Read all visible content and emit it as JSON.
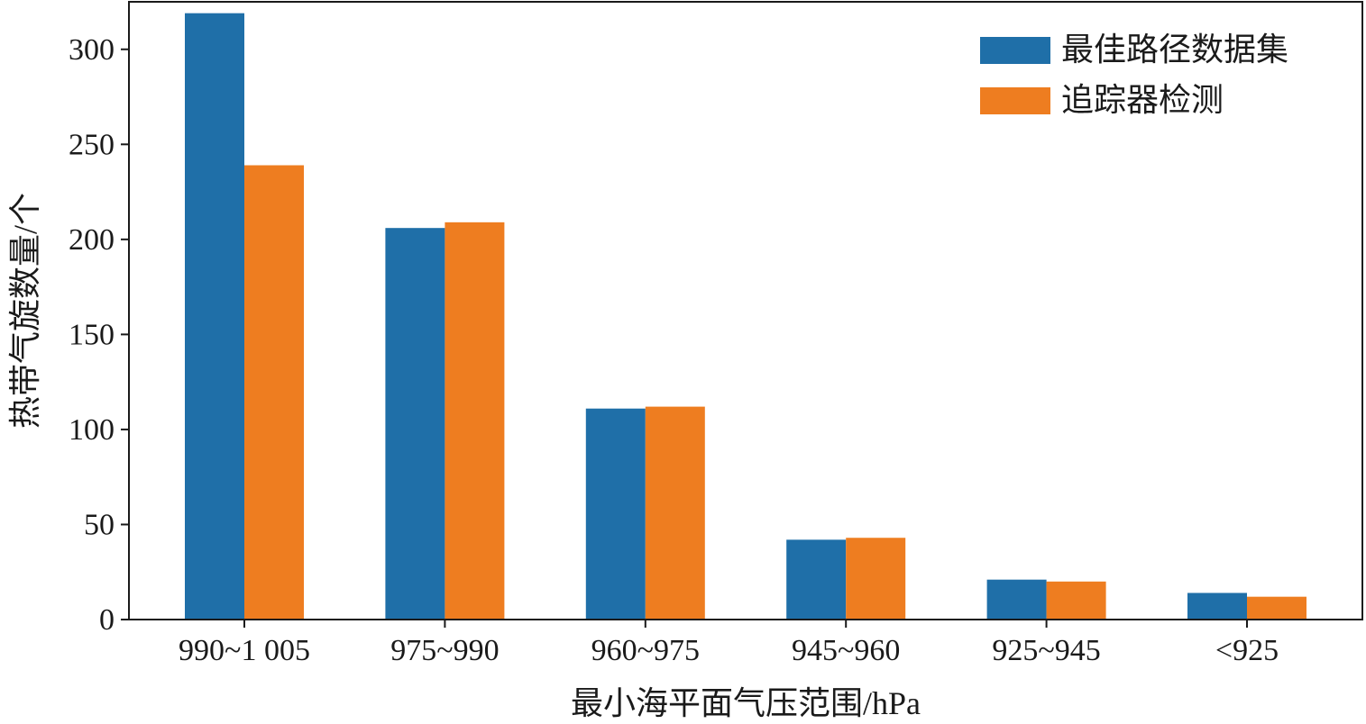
{
  "chart_data": {
    "type": "bar",
    "xlabel": "最小海平面气压范围/hPa",
    "ylabel": "热带气旋数量/个",
    "categories": [
      "990~1 005",
      "975~990",
      "960~975",
      "945~960",
      "925~945",
      "<925"
    ],
    "series": [
      {
        "name": "最佳路径数据集",
        "color": "#1f6fa8",
        "values": [
          319,
          206,
          111,
          42,
          21,
          14
        ]
      },
      {
        "name": "追踪器检测",
        "color": "#ee7d20",
        "values": [
          239,
          209,
          112,
          43,
          20,
          12
        ]
      }
    ],
    "ylim": [
      0,
      325
    ],
    "yticks": [
      0,
      50,
      100,
      150,
      200,
      250,
      300
    ],
    "grid": false,
    "legend_position": "top-right"
  }
}
